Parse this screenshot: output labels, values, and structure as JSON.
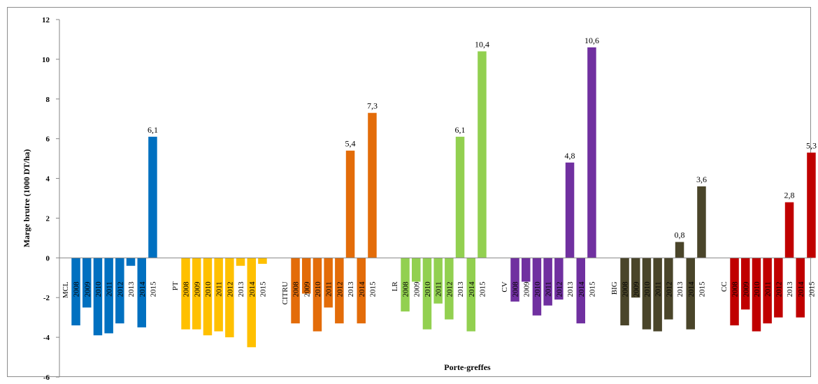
{
  "chart_data": {
    "type": "bar",
    "title": "",
    "xlabel": "Porte-greffes",
    "ylabel": "Marge brutre (1000 DT/ha)",
    "ylim": [
      -6,
      12
    ],
    "yticks": [
      -6,
      -4,
      -2,
      0,
      2,
      4,
      6,
      8,
      10,
      12
    ],
    "grid": false,
    "groups": [
      {
        "name": "MCL",
        "color": "#0070c0",
        "years": [
          "2008",
          "2009",
          "2010",
          "2011",
          "2012",
          "2013",
          "2014",
          "2015"
        ],
        "values": [
          -3.4,
          -2.5,
          -3.9,
          -3.8,
          -3.3,
          -0.4,
          -3.5,
          6.1
        ],
        "labels": [
          "",
          "",
          "",
          "",
          "",
          "",
          "",
          "6,1"
        ]
      },
      {
        "name": "PT",
        "color": "#ffc000",
        "years": [
          "2008",
          "2009",
          "2010",
          "2011",
          "2012",
          "2013",
          "2014",
          "2015"
        ],
        "values": [
          -3.6,
          -3.6,
          -3.9,
          -3.7,
          -4.0,
          -0.4,
          -4.5,
          -0.3
        ],
        "labels": [
          "",
          "",
          "",
          "",
          "",
          "",
          "",
          ""
        ]
      },
      {
        "name": "CITRU",
        "color": "#e36c09",
        "years": [
          "2008",
          "2009",
          "2010",
          "2011",
          "2012",
          "2013",
          "2014",
          "2015"
        ],
        "values": [
          -3.3,
          -1.8,
          -3.7,
          -2.5,
          -3.3,
          5.4,
          -3.3,
          7.3
        ],
        "labels": [
          "",
          "",
          "",
          "",
          "",
          "5,4",
          "",
          "7,3"
        ]
      },
      {
        "name": "LR",
        "color": "#92d050",
        "years": [
          "2008",
          "2009",
          "2010",
          "2011",
          "2012",
          "2013",
          "2014",
          "2015"
        ],
        "values": [
          -2.7,
          -1.2,
          -3.6,
          -2.3,
          -3.1,
          6.1,
          -3.7,
          10.4
        ],
        "labels": [
          "",
          "",
          "",
          "",
          "",
          "6,1",
          "",
          "10,4"
        ]
      },
      {
        "name": "CV",
        "color": "#7030a0",
        "years": [
          "2008",
          "2009",
          "2010",
          "2011",
          "2012",
          "2013",
          "2014",
          "2015"
        ],
        "values": [
          -2.2,
          -1.2,
          -2.9,
          -2.4,
          -2.1,
          4.8,
          -3.3,
          10.6
        ],
        "labels": [
          "",
          "",
          "",
          "",
          "",
          "4,8",
          "",
          "10,6"
        ]
      },
      {
        "name": "BIG",
        "color": "#4a452a",
        "years": [
          "2008",
          "2009",
          "2010",
          "2011",
          "2012",
          "2013",
          "2014",
          "2015"
        ],
        "values": [
          -3.4,
          -2.0,
          -3.6,
          -3.7,
          -3.1,
          0.8,
          -3.6,
          3.6
        ],
        "labels": [
          "",
          "",
          "",
          "",
          "",
          "0,8",
          "",
          "3,6"
        ]
      },
      {
        "name": "CC",
        "color": "#c00000",
        "years": [
          "2008",
          "2009",
          "2010",
          "2011",
          "2012",
          "2013",
          "2014",
          "2015"
        ],
        "values": [
          -3.4,
          -2.6,
          -3.7,
          -3.3,
          -3.0,
          2.8,
          -3.0,
          5.3
        ],
        "labels": [
          "",
          "",
          "",
          "",
          "",
          "2,8",
          "",
          "5,3"
        ]
      }
    ]
  }
}
